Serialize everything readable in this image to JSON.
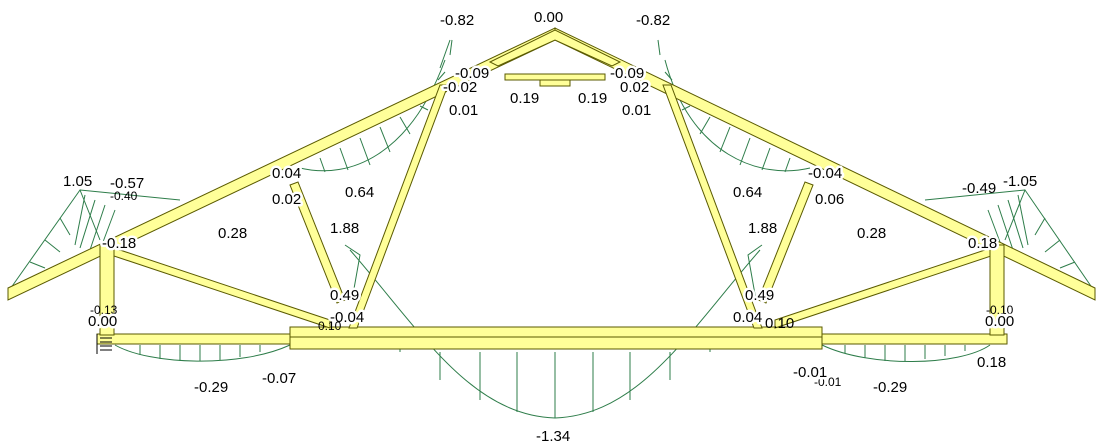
{
  "colors": {
    "member_fill": "#ffff99",
    "member_stroke": "#5a5a00",
    "diagram_stroke": "#2e7d4a",
    "text": "#000000"
  },
  "labels": {
    "apex_value": "0.00",
    "top_left_peak": "-0.82",
    "top_right_peak": "-0.82",
    "collar_left_end": "-0.09",
    "collar_right_end": "-0.09",
    "strut_top_left_a": "-0.02",
    "strut_top_right_a": "0.02",
    "strut_top_left_b": "0.01",
    "strut_top_right_b": "0.01",
    "collar_left_mid": "0.19",
    "collar_right_mid": "0.19",
    "rafter_left_joint_a": "0.04",
    "rafter_left_joint_b": "0.02",
    "rafter_right_joint_a": "-0.04",
    "rafter_right_joint_b": "0.06",
    "web_left_upper": "0.64",
    "web_right_upper": "0.64",
    "web_left_mid": "1.88",
    "web_right_mid": "1.88",
    "web_left_low": "0.28",
    "web_right_low": "0.28",
    "eave_left_a": "1.05",
    "eave_left_b": "-0.57",
    "eave_left_c": "-0.40",
    "eave_right_a": "-0.49",
    "eave_right_b": "-1.05",
    "post_left": "-0.18",
    "post_right": "0.18",
    "post_left_low": "-0.13",
    "post_right_low": "-0.10",
    "center_left_a": "0.49",
    "center_left_b": "-0.04",
    "center_left_c": "0.10",
    "center_right_a": "0.49",
    "center_right_b": "0.04",
    "center_right_c": "0.10",
    "support_left": "0.00",
    "support_right": "0.00",
    "right_support_low": "0.18",
    "bottom_left_span": "-0.29",
    "bottom_right_span": "-0.29",
    "bottom_left_joint": "-0.07",
    "bottom_right_joint_a": "-0.01",
    "bottom_right_joint_b": "-0.01",
    "bottom_center": "-1.34"
  }
}
